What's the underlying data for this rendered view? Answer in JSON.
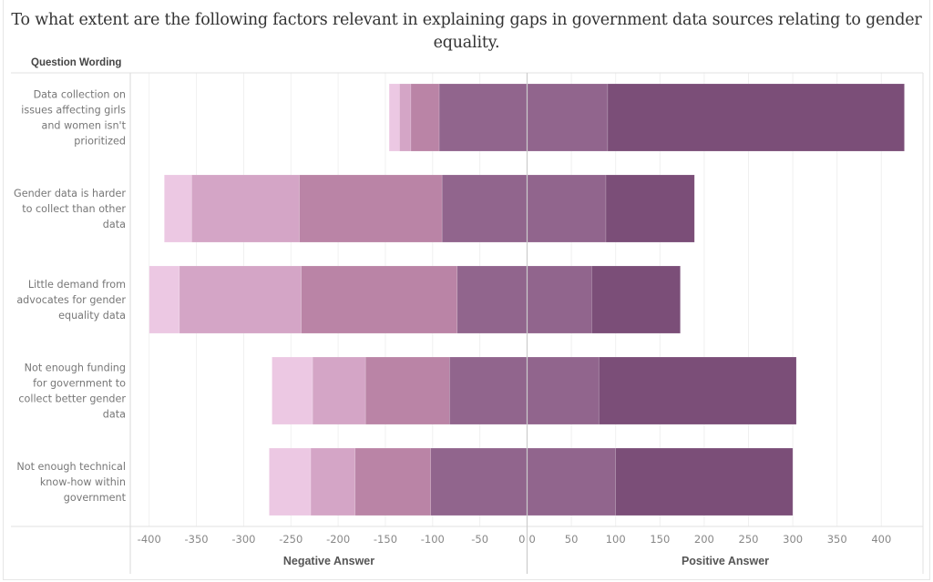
{
  "title": {
    "line1": "To what extent are the following factors relevant in explaining gaps in government data sources relating to gender",
    "line2": "equality."
  },
  "chart_data": {
    "type": "bar",
    "orientation": "horizontal-diverging-stacked",
    "title": "To what extent are the following factors relevant in explaining gaps in government data sources relating to gender equality.",
    "row_header": "Question Wording",
    "categories": [
      [
        "Data collection on",
        "issues affecting girls",
        "and women isn't",
        "prioritized"
      ],
      [
        "Gender data is harder",
        "to collect than other",
        "data"
      ],
      [
        "Little demand from",
        "advocates for gender",
        "equality data"
      ],
      [
        "Not enough funding",
        "for government to",
        "collect better gender",
        "data"
      ],
      [
        "Not enough technical",
        "know-how within",
        "government"
      ]
    ],
    "negative": {
      "xlabel": "Negative Answer",
      "xlim": [
        -420,
        0
      ],
      "ticks": [
        "-400",
        "-350",
        "-300",
        "-250",
        "-200",
        "-150",
        "-100",
        "-50",
        "0"
      ],
      "tick_values": [
        -400,
        -350,
        -300,
        -250,
        -200,
        -150,
        -100,
        -50,
        0
      ],
      "segment_colors_outer_to_inner": [
        "#ecc8e3",
        "#d4a5c6",
        "#ba84a6",
        "#91658d"
      ],
      "segments_outer_to_inner": [
        [
          11,
          12,
          30,
          93
        ],
        [
          29,
          114,
          151,
          90
        ],
        [
          32,
          129,
          165,
          74
        ],
        [
          43,
          56,
          89,
          82
        ],
        [
          44,
          47,
          80,
          102
        ]
      ]
    },
    "positive": {
      "xlabel": "Positive Answer",
      "xlim": [
        0,
        447
      ],
      "ticks": [
        "0",
        "50",
        "100",
        "150",
        "200",
        "250",
        "300",
        "350",
        "400"
      ],
      "tick_values": [
        0,
        50,
        100,
        150,
        200,
        250,
        300,
        350,
        400
      ],
      "segment_colors_inner_to_outer": [
        "#91658d",
        "#7b4e78"
      ],
      "segments_inner_to_outer": [
        [
          91,
          335
        ],
        [
          89,
          100
        ],
        [
          73,
          100
        ],
        [
          81,
          223
        ],
        [
          100,
          200
        ]
      ]
    },
    "grid": true,
    "legend": "none"
  }
}
